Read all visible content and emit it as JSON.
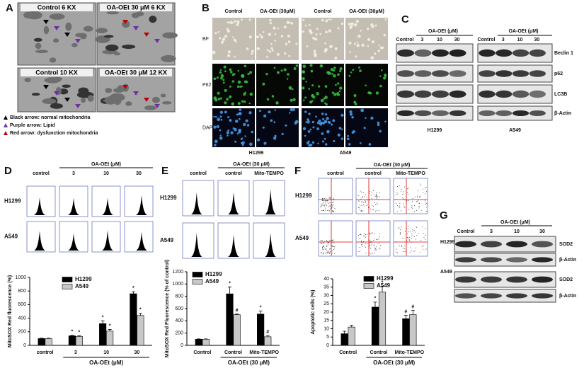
{
  "panels": {
    "A": {
      "letter": "A",
      "images": [
        "Control  6 KX",
        "OA-OEt 30 μM 6 KX",
        "Control   10 KX",
        "OA-OEt 30 μM 12 KX"
      ],
      "legend": [
        "Black arrow: normal mitochondria",
        "Purple arrow: Lipid",
        "Red arrow: dysfunction mitochondria"
      ]
    },
    "B": {
      "letter": "B",
      "columns": [
        "Control",
        "OA-OEt  (30μM)",
        "Control",
        "OA-OEt  (30μM)"
      ],
      "rows": [
        "BF",
        "P62",
        "DAPI"
      ],
      "cell_lines": [
        "H1299",
        "A549"
      ]
    },
    "C": {
      "letter": "C",
      "blots": [
        {
          "cell_line": "H1299",
          "treatment": "OA-OEt  (μM)",
          "lanes": [
            "Control",
            "3",
            "10",
            "30"
          ]
        },
        {
          "cell_line": "A549",
          "treatment": "OA-OEt  (μM)",
          "lanes": [
            "Control",
            "3",
            "10",
            "30"
          ]
        }
      ],
      "proteins": [
        "Beclin 1",
        "p62",
        "LC3B",
        "β-Actin"
      ]
    },
    "D": {
      "letter": "D",
      "treatment": "OA-OEt (μM)",
      "columns": [
        "control",
        "3",
        "10",
        "30"
      ],
      "rows": [
        "H1299",
        "A549"
      ]
    },
    "E": {
      "letter": "E",
      "treatment": "OA-OEt (30 μM)",
      "columns": [
        "control",
        "control",
        "Mito-TEMPO"
      ],
      "rows": [
        "H1299",
        "A549"
      ]
    },
    "F": {
      "letter": "F",
      "treatment": "OA-OEt (30 μM)",
      "columns": [
        "control",
        "control",
        "Mito-TEMPO"
      ],
      "rows": [
        "H1299",
        "A549"
      ]
    },
    "G": {
      "letter": "G",
      "treatment": "OA-OEt  (μM)",
      "lanes": [
        "Control",
        "3",
        "10",
        "30"
      ],
      "cell_lines": [
        "H1299",
        "A549"
      ],
      "proteins": [
        "SOD2",
        "β-Actin"
      ]
    }
  },
  "chart_data": [
    {
      "type": "bar",
      "y_label": "MitoSOX Red fluorescence (%)",
      "categories": [
        "control",
        "3",
        "10",
        "30"
      ],
      "x_group_label": "OA-OEt (μM)",
      "series": [
        {
          "name": "H1299",
          "color": "#000000",
          "values": [
            100,
            140,
            320,
            760
          ],
          "errors": [
            5,
            8,
            40,
            30
          ],
          "marks": [
            null,
            "*",
            "*",
            "*"
          ]
        },
        {
          "name": "A549",
          "color": "#c8c8c8",
          "values": [
            100,
            130,
            210,
            440
          ],
          "errors": [
            5,
            10,
            25,
            30
          ],
          "marks": [
            null,
            "*",
            "*",
            "*"
          ]
        }
      ],
      "ylim": [
        0,
        1000
      ],
      "yticks": [
        0,
        200,
        400,
        600,
        800,
        1000
      ]
    },
    {
      "type": "bar",
      "y_label": "MitoSOX Red Fluorescence (% of control)",
      "categories": [
        "Control",
        "Control",
        "Mito-TEMPO"
      ],
      "x_group_label": "OA-OEt (30 μM)",
      "series": [
        {
          "name": "H1299",
          "color": "#000000",
          "values": [
            100,
            840,
            510
          ],
          "errors": [
            5,
            110,
            50
          ],
          "marks": [
            null,
            "*",
            "*"
          ]
        },
        {
          "name": "A549",
          "color": "#c8c8c8",
          "values": [
            100,
            500,
            140
          ],
          "errors": [
            5,
            10,
            20
          ],
          "marks": [
            null,
            "#",
            "#"
          ]
        }
      ],
      "ylim": [
        0,
        1200
      ],
      "yticks": [
        0,
        200,
        400,
        600,
        800,
        1000,
        1200
      ]
    },
    {
      "type": "bar",
      "y_label": "Apoptotic cells (%)",
      "categories": [
        "Control",
        "Control",
        "Mito-TEMPO"
      ],
      "x_group_label": "OA-OEt (30 μM)",
      "series": [
        {
          "name": "H1299",
          "color": "#000000",
          "values": [
            7,
            23,
            16
          ],
          "errors": [
            1.5,
            3,
            2
          ],
          "marks": [
            null,
            "*",
            "#"
          ]
        },
        {
          "name": "A549",
          "color": "#c8c8c8",
          "values": [
            11,
            32,
            18.5
          ],
          "errors": [
            1,
            3.5,
            2.5
          ],
          "marks": [
            null,
            "*",
            "#"
          ]
        }
      ],
      "ylim": [
        0,
        40
      ],
      "yticks": [
        0,
        5,
        10,
        15,
        20,
        25,
        30,
        35,
        40
      ]
    }
  ]
}
